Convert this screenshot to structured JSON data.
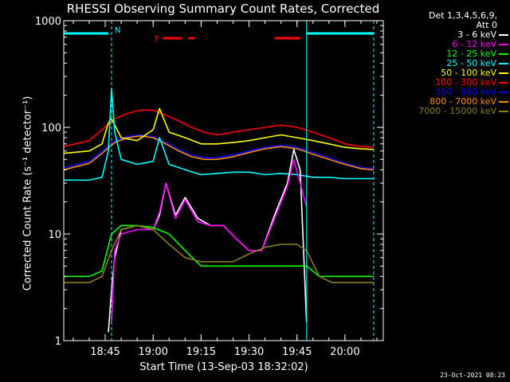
{
  "chart_data": {
    "type": "line",
    "title": "RHESSI Observing Summary Count Rates, Corrected",
    "ylabel": "Corrected Count Rate (s⁻¹ detector⁻¹)",
    "xlabel": "Start Time (13-Sep-03 18:32:02)",
    "yscale": "log",
    "ylim": [
      1,
      1000
    ],
    "yticks": [
      {
        "value": 1,
        "label": "1"
      },
      {
        "value": 10,
        "label": "10"
      },
      {
        "value": 100,
        "label": "100"
      },
      {
        "value": 1000,
        "label": "1000"
      }
    ],
    "xlim": [
      "18:32:02",
      "20:12:00"
    ],
    "xticks": [
      "18:45",
      "19:00",
      "19:15",
      "19:30",
      "19:45",
      "20:00"
    ],
    "grid": false,
    "legend_position": "right",
    "legend_header": [
      "Det 1,3,4,5,6,9,",
      "Att 0"
    ],
    "series": [
      {
        "name": "3 - 6 keV",
        "color": "#ffffff",
        "x": [
          "18:46",
          "18:47",
          "18:48",
          "18:50",
          "18:55",
          "19:00",
          "19:02",
          "19:04",
          "19:07",
          "19:10",
          "19:14",
          "19:18",
          "19:22",
          "19:26",
          "19:30",
          "19:34",
          "19:38",
          "19:42",
          "19:44",
          "19:46",
          "19:48"
        ],
        "y": [
          1.2,
          3,
          6,
          11,
          12,
          11,
          15,
          30,
          15,
          22,
          14,
          12,
          12,
          9,
          7,
          7,
          15,
          30,
          62,
          40,
          1.5
        ]
      },
      {
        "name": "6 - 12 keV",
        "color": "#ff00ff",
        "x": [
          "18:47",
          "18:48",
          "18:50",
          "18:55",
          "19:00",
          "19:02",
          "19:04",
          "19:07",
          "19:10",
          "19:14",
          "19:18",
          "19:22",
          "19:26",
          "19:30",
          "19:34",
          "19:38",
          "19:42",
          "19:44",
          "19:46",
          "19:48"
        ],
        "y": [
          1.5,
          7,
          10,
          11,
          11,
          16,
          30,
          14,
          21,
          13,
          12,
          12,
          9,
          7,
          7,
          14,
          28,
          50,
          30,
          18
        ]
      },
      {
        "name": "12 - 25 keV",
        "color": "#00ff00",
        "x": [
          "18:32",
          "18:40",
          "18:44",
          "18:47",
          "18:50",
          "18:55",
          "19:00",
          "19:05",
          "19:10",
          "19:15",
          "19:20",
          "19:25",
          "19:30",
          "19:35",
          "19:40",
          "19:45",
          "19:48",
          "19:52",
          "19:56",
          "20:00",
          "20:05",
          "20:09"
        ],
        "y": [
          4,
          4,
          4.5,
          10,
          12,
          12,
          11.5,
          10,
          7,
          5,
          5,
          5,
          5,
          5,
          5,
          5,
          5,
          4,
          4,
          4,
          4,
          4
        ]
      },
      {
        "name": "25 - 50 keV",
        "color": "#00ffff",
        "x": [
          "18:32",
          "18:40",
          "18:44",
          "18:46",
          "18:47",
          "18:48",
          "18:50",
          "18:55",
          "19:00",
          "19:02",
          "19:05",
          "19:10",
          "19:15",
          "19:20",
          "19:25",
          "19:30",
          "19:35",
          "19:40",
          "19:45",
          "19:50",
          "19:55",
          "20:00",
          "20:05",
          "20:09"
        ],
        "y": [
          32,
          32,
          34,
          60,
          230,
          90,
          50,
          45,
          48,
          80,
          45,
          40,
          36,
          37,
          38,
          38,
          36,
          37,
          36,
          34,
          34,
          33,
          33,
          33
        ]
      },
      {
        "name": "50 - 100 keV",
        "color": "#ffff00",
        "x": [
          "18:32",
          "18:40",
          "18:44",
          "18:46",
          "18:47",
          "18:50",
          "18:55",
          "19:00",
          "19:02",
          "19:05",
          "19:10",
          "19:15",
          "19:20",
          "19:25",
          "19:30",
          "19:35",
          "19:40",
          "19:45",
          "19:50",
          "19:55",
          "20:00",
          "20:05",
          "20:09"
        ],
        "y": [
          57,
          60,
          70,
          110,
          120,
          80,
          75,
          95,
          150,
          90,
          80,
          70,
          70,
          72,
          75,
          80,
          85,
          80,
          75,
          70,
          65,
          63,
          62
        ]
      },
      {
        "name": "100 - 300 keV",
        "color": "#ff0000",
        "x": [
          "18:32",
          "18:40",
          "18:44",
          "18:48",
          "18:52",
          "18:56",
          "19:00",
          "19:04",
          "19:08",
          "19:12",
          "19:16",
          "19:20",
          "19:25",
          "19:30",
          "19:35",
          "19:40",
          "19:45",
          "19:50",
          "19:55",
          "20:00",
          "20:05",
          "20:09"
        ],
        "y": [
          66,
          75,
          95,
          120,
          135,
          145,
          145,
          130,
          115,
          100,
          90,
          85,
          90,
          95,
          100,
          105,
          100,
          90,
          80,
          70,
          66,
          65
        ]
      },
      {
        "name": "300 - 800 keV",
        "color": "#0000ff",
        "x": [
          "18:32",
          "18:40",
          "18:44",
          "18:48",
          "18:52",
          "18:56",
          "19:00",
          "19:04",
          "19:08",
          "19:12",
          "19:16",
          "19:20",
          "19:25",
          "19:30",
          "19:35",
          "19:40",
          "19:45",
          "19:50",
          "19:55",
          "20:00",
          "20:05",
          "20:09"
        ],
        "y": [
          42,
          48,
          60,
          75,
          82,
          85,
          82,
          72,
          62,
          55,
          52,
          52,
          55,
          60,
          65,
          68,
          65,
          58,
          52,
          46,
          42,
          41
        ]
      },
      {
        "name": "800 - 7000 keV",
        "color": "#ff8c00",
        "x": [
          "18:32",
          "18:40",
          "18:44",
          "18:48",
          "18:52",
          "18:56",
          "19:00",
          "19:04",
          "19:08",
          "19:12",
          "19:16",
          "19:20",
          "19:25",
          "19:30",
          "19:35",
          "19:40",
          "19:45",
          "19:50",
          "19:55",
          "20:00",
          "20:05",
          "20:09"
        ],
        "y": [
          40,
          46,
          57,
          72,
          80,
          83,
          80,
          70,
          60,
          53,
          50,
          50,
          53,
          58,
          63,
          66,
          63,
          56,
          50,
          45,
          41,
          40
        ]
      },
      {
        "name": "7000 - 15000 keV",
        "color": "#8b7d1a",
        "x": [
          "18:32",
          "18:40",
          "18:44",
          "18:47",
          "18:50",
          "18:55",
          "19:00",
          "19:05",
          "19:10",
          "19:15",
          "19:20",
          "19:25",
          "19:30",
          "19:35",
          "19:40",
          "19:45",
          "19:48",
          "19:52",
          "19:56",
          "20:00",
          "20:05",
          "20:09"
        ],
        "y": [
          3.5,
          3.5,
          4,
          7,
          11,
          12,
          11,
          8,
          6,
          5.5,
          5.5,
          5.5,
          6.5,
          7.5,
          8,
          8,
          7,
          4,
          3.5,
          3.5,
          3.5,
          3.5
        ]
      }
    ],
    "annotations": [
      {
        "text": "N",
        "color": "#00ffff",
        "segments": [
          [
            "18:32",
            "18:46"
          ],
          [
            "19:48",
            "20:09"
          ]
        ]
      },
      {
        "text": "F",
        "color": "#ff0000",
        "segments": [
          [
            "19:03",
            "19:09"
          ],
          [
            "19:11",
            "19:13"
          ],
          [
            "19:38",
            "19:46"
          ]
        ]
      }
    ],
    "vlines": [
      {
        "x": "18:47",
        "color": "#00ffff",
        "style": "dashed"
      },
      {
        "x": "19:48",
        "color": "#00ffff",
        "style": "solid"
      },
      {
        "x": "20:09",
        "color": "#00ffff",
        "style": "dashed"
      }
    ]
  },
  "footer": "23-Oct-2021 08:23"
}
